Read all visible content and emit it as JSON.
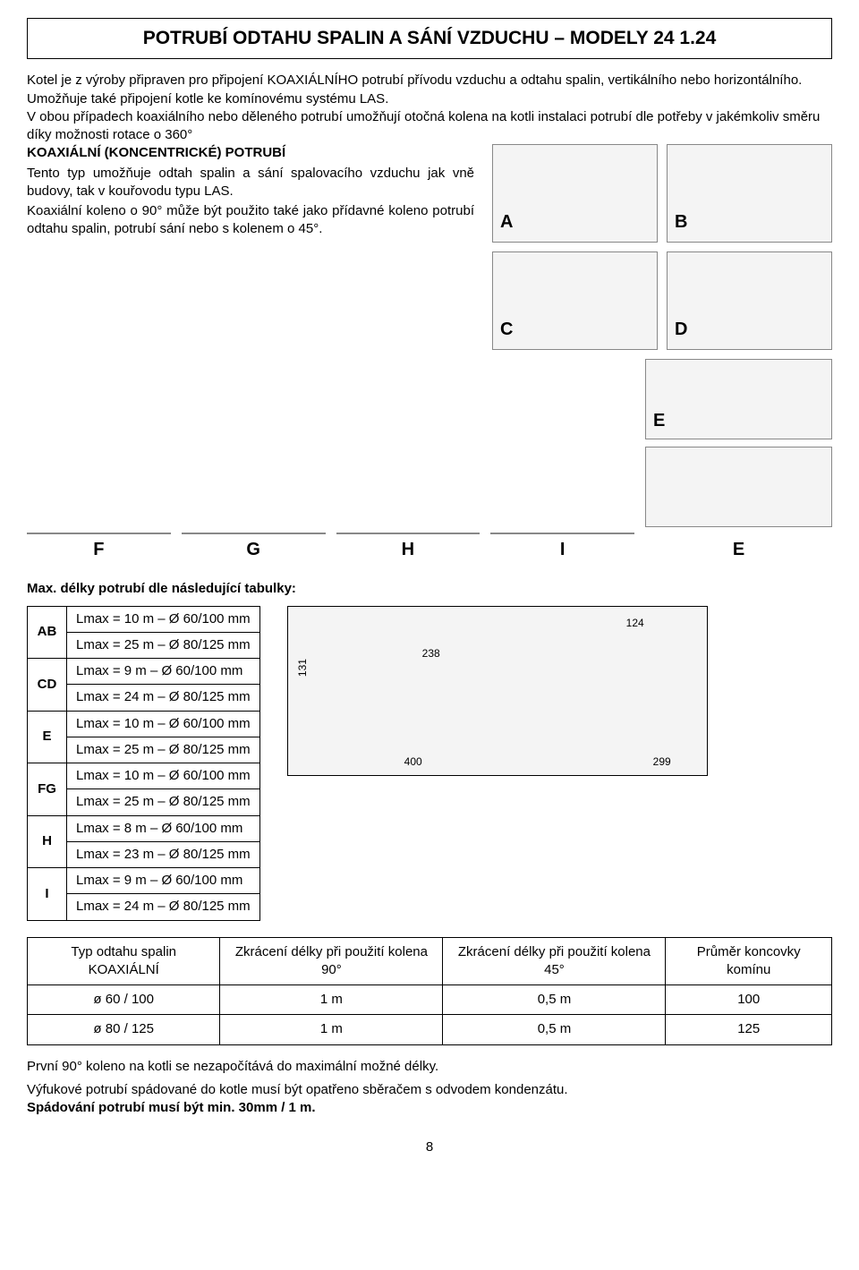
{
  "title": "POTRUBÍ ODTAHU SPALIN A SÁNÍ VZDUCHU – MODELY 24 1.24",
  "intro": {
    "p1": "Kotel je z výroby připraven pro připojení KOAXIÁLNÍHO potrubí přívodu vzduchu a odtahu spalin, vertikálního nebo horizontálního. Umožňuje také připojení kotle ke komínovému systému LAS.",
    "p2": "V obou případech koaxiálního nebo děleného potrubí umožňují otočná kolena na kotli instalaci potrubí dle potřeby v jakémkoliv směru díky možnosti rotace o 360°",
    "h1": "KOAXIÁLNÍ (KONCENTRICKÉ) POTRUBÍ",
    "p3": "Tento typ umožňuje odtah spalin a sání spalovacího vzduchu jak vně budovy, tak v kouřovodu typu LAS.",
    "p4": "Koaxiální koleno o 90° může být použito také jako přídavné koleno potrubí odtahu spalin, potrubí sání nebo s kolenem o 45°."
  },
  "figLabels": {
    "A": "A",
    "B": "B",
    "C": "C",
    "D": "D",
    "E": "E",
    "F": "F",
    "G": "G",
    "H": "H",
    "I": "I"
  },
  "lengthsHeading": "Max. délky potrubí dle následující tabulky:",
  "lengths": [
    {
      "key": "AB",
      "rows": [
        "Lmax = 10 m – Ø 60/100 mm",
        "Lmax = 25 m – Ø 80/125 mm"
      ]
    },
    {
      "key": "CD",
      "rows": [
        "Lmax =   9 m – Ø 60/100 mm",
        "Lmax = 24 m – Ø 80/125 mm"
      ]
    },
    {
      "key": "E",
      "rows": [
        "Lmax = 10 m – Ø 60/100 mm",
        "Lmax = 25 m – Ø 80/125 mm"
      ]
    },
    {
      "key": "FG",
      "rows": [
        "Lmax = 10 m – Ø 60/100 mm",
        "Lmax = 25 m – Ø 80/125 mm"
      ]
    },
    {
      "key": "H",
      "rows": [
        "Lmax =   8 m – Ø 60/100 mm",
        "Lmax = 23 m – Ø 80/125 mm"
      ]
    },
    {
      "key": "I",
      "rows": [
        "Lmax =   9 m – Ø 60/100 mm",
        "Lmax = 24 m – Ø 80/125 mm"
      ]
    }
  ],
  "dimFig": {
    "d131": "131",
    "d238": "238",
    "d400": "400",
    "d124": "124",
    "d299": "299"
  },
  "reduction": {
    "headers": [
      "Typ odtahu spalin KOAXIÁLNÍ",
      "Zkrácení délky při použití kolena 90°",
      "Zkrácení délky při použití kolena 45°",
      "Průměr koncovky komínu"
    ],
    "rows": [
      [
        "ø 60 / 100",
        "1 m",
        "0,5 m",
        "100"
      ],
      [
        "ø 80 / 125",
        "1 m",
        "0,5 m",
        "125"
      ]
    ]
  },
  "notes": {
    "n1": "První 90° koleno na kotli se nezapočítává do maximální možné délky.",
    "n2a": "Výfukové potrubí spádované do kotle musí být opatřeno sběračem s odvodem kondenzátu.",
    "n2b": "Spádování potrubí musí být min. 30mm / 1 m."
  },
  "pageNumber": "8"
}
